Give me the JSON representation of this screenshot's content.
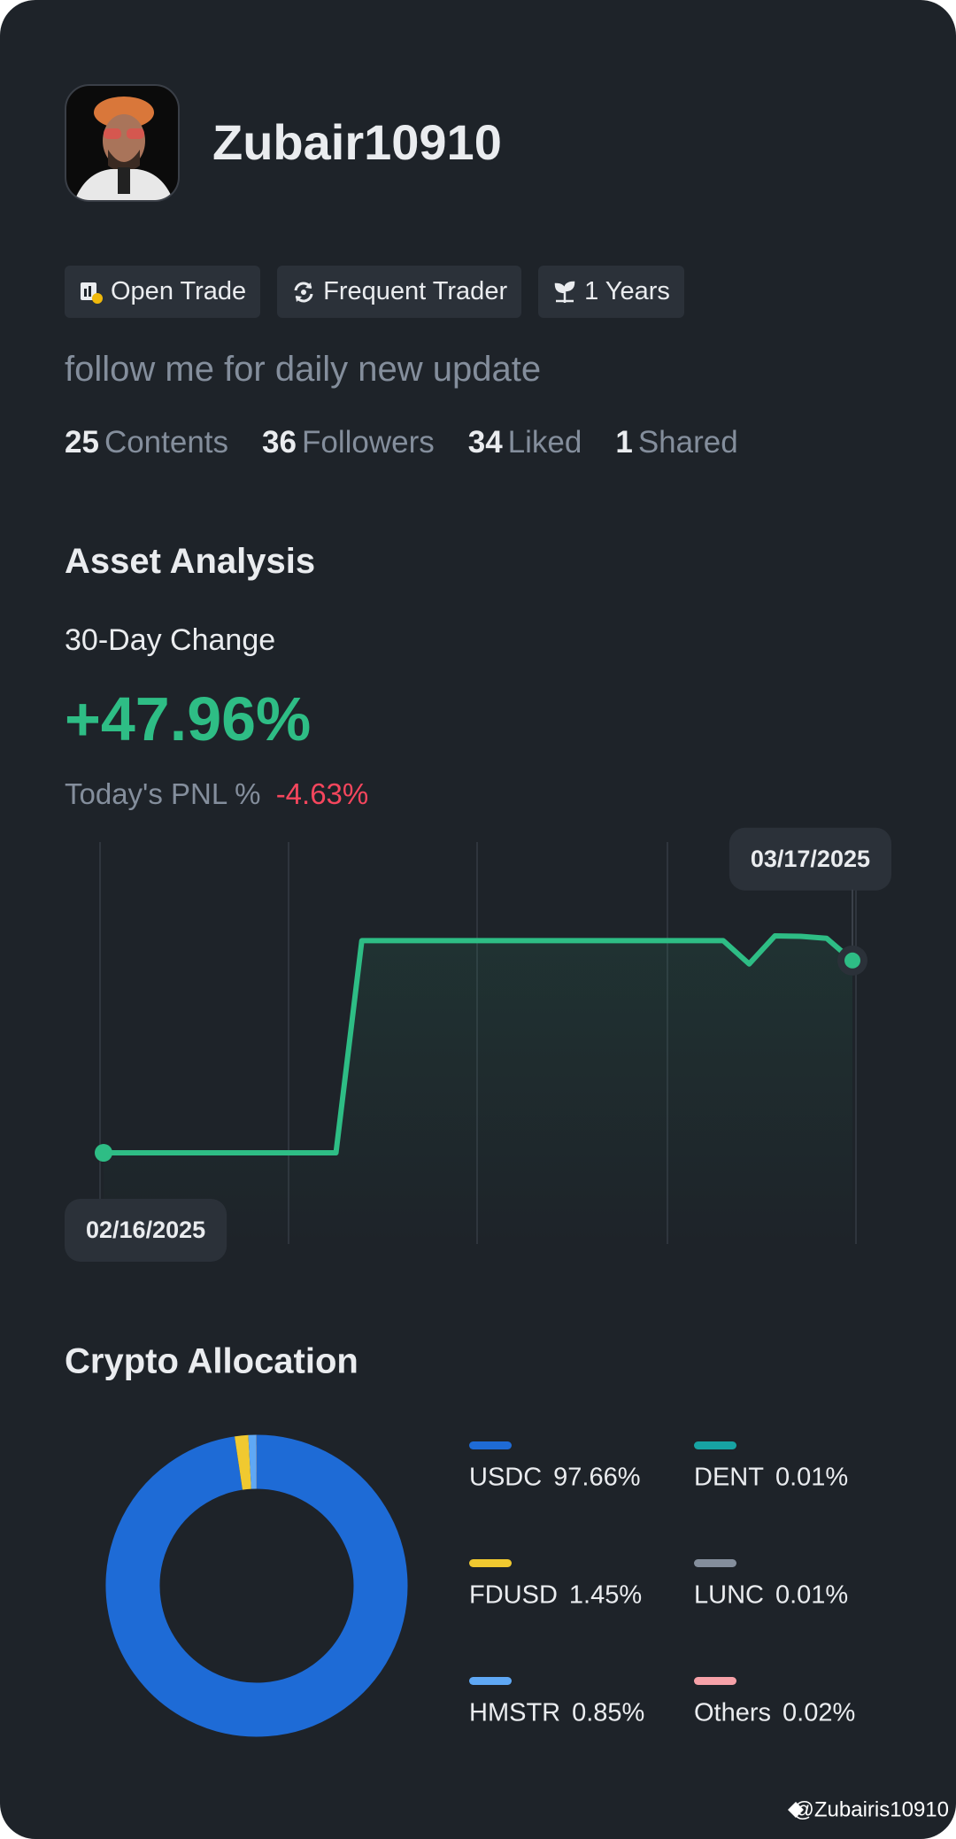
{
  "profile": {
    "name": "Zubair10910",
    "tags": [
      "Open Trade",
      "Frequent Trader",
      "1 Years"
    ],
    "bio": "follow me for daily new update",
    "stats": [
      {
        "value": 25,
        "label": "Contents"
      },
      {
        "value": 36,
        "label": "Followers"
      },
      {
        "value": 34,
        "label": "Liked"
      },
      {
        "value": 1,
        "label": "Shared"
      }
    ]
  },
  "asset_analysis": {
    "title": "Asset Analysis",
    "change_label": "30-Day Change",
    "change_value": "+47.96%",
    "pnl_label": "Today's PNL %",
    "pnl_value": "-4.63%"
  },
  "chart_data": [
    {
      "type": "line",
      "categories": [
        "02/16/2025",
        null,
        null,
        null,
        null,
        null,
        null,
        null,
        null,
        null,
        null,
        null,
        null,
        null,
        null,
        null,
        null,
        null,
        null,
        null,
        null,
        null,
        null,
        null,
        null,
        null,
        null,
        null,
        null,
        "03/17/2025"
      ],
      "series": [
        {
          "color": "#2ebd85",
          "values": [
            0,
            0,
            0,
            0,
            0,
            0,
            0,
            0,
            0,
            0,
            52.9,
            52.9,
            52.9,
            52.9,
            52.9,
            52.9,
            52.9,
            52.9,
            52.9,
            52.9,
            52.9,
            52.9,
            52.9,
            52.9,
            52.9,
            47.1,
            54.1,
            54.0,
            53.5,
            47.96
          ]
        }
      ]
    },
    {
      "type": "pie",
      "title": "Crypto Allocation",
      "categories": [
        "USDC",
        "FDUSD",
        "HMSTR",
        "DENT",
        "LUNC",
        "Others"
      ],
      "values": [
        97.66,
        1.45,
        0.85,
        0.01,
        0.01,
        0.02
      ],
      "value_labels": [
        "97.66%",
        "1.45%",
        "0.85%",
        "0.01%",
        "0.01%",
        "0.02%"
      ],
      "colors": [
        "#1e6bd6",
        "#f0c930",
        "#5fa8f5",
        "#17a3a3",
        "#848e9c",
        "#f6a1a8"
      ]
    }
  ],
  "watermark": "@Zubairis10910"
}
